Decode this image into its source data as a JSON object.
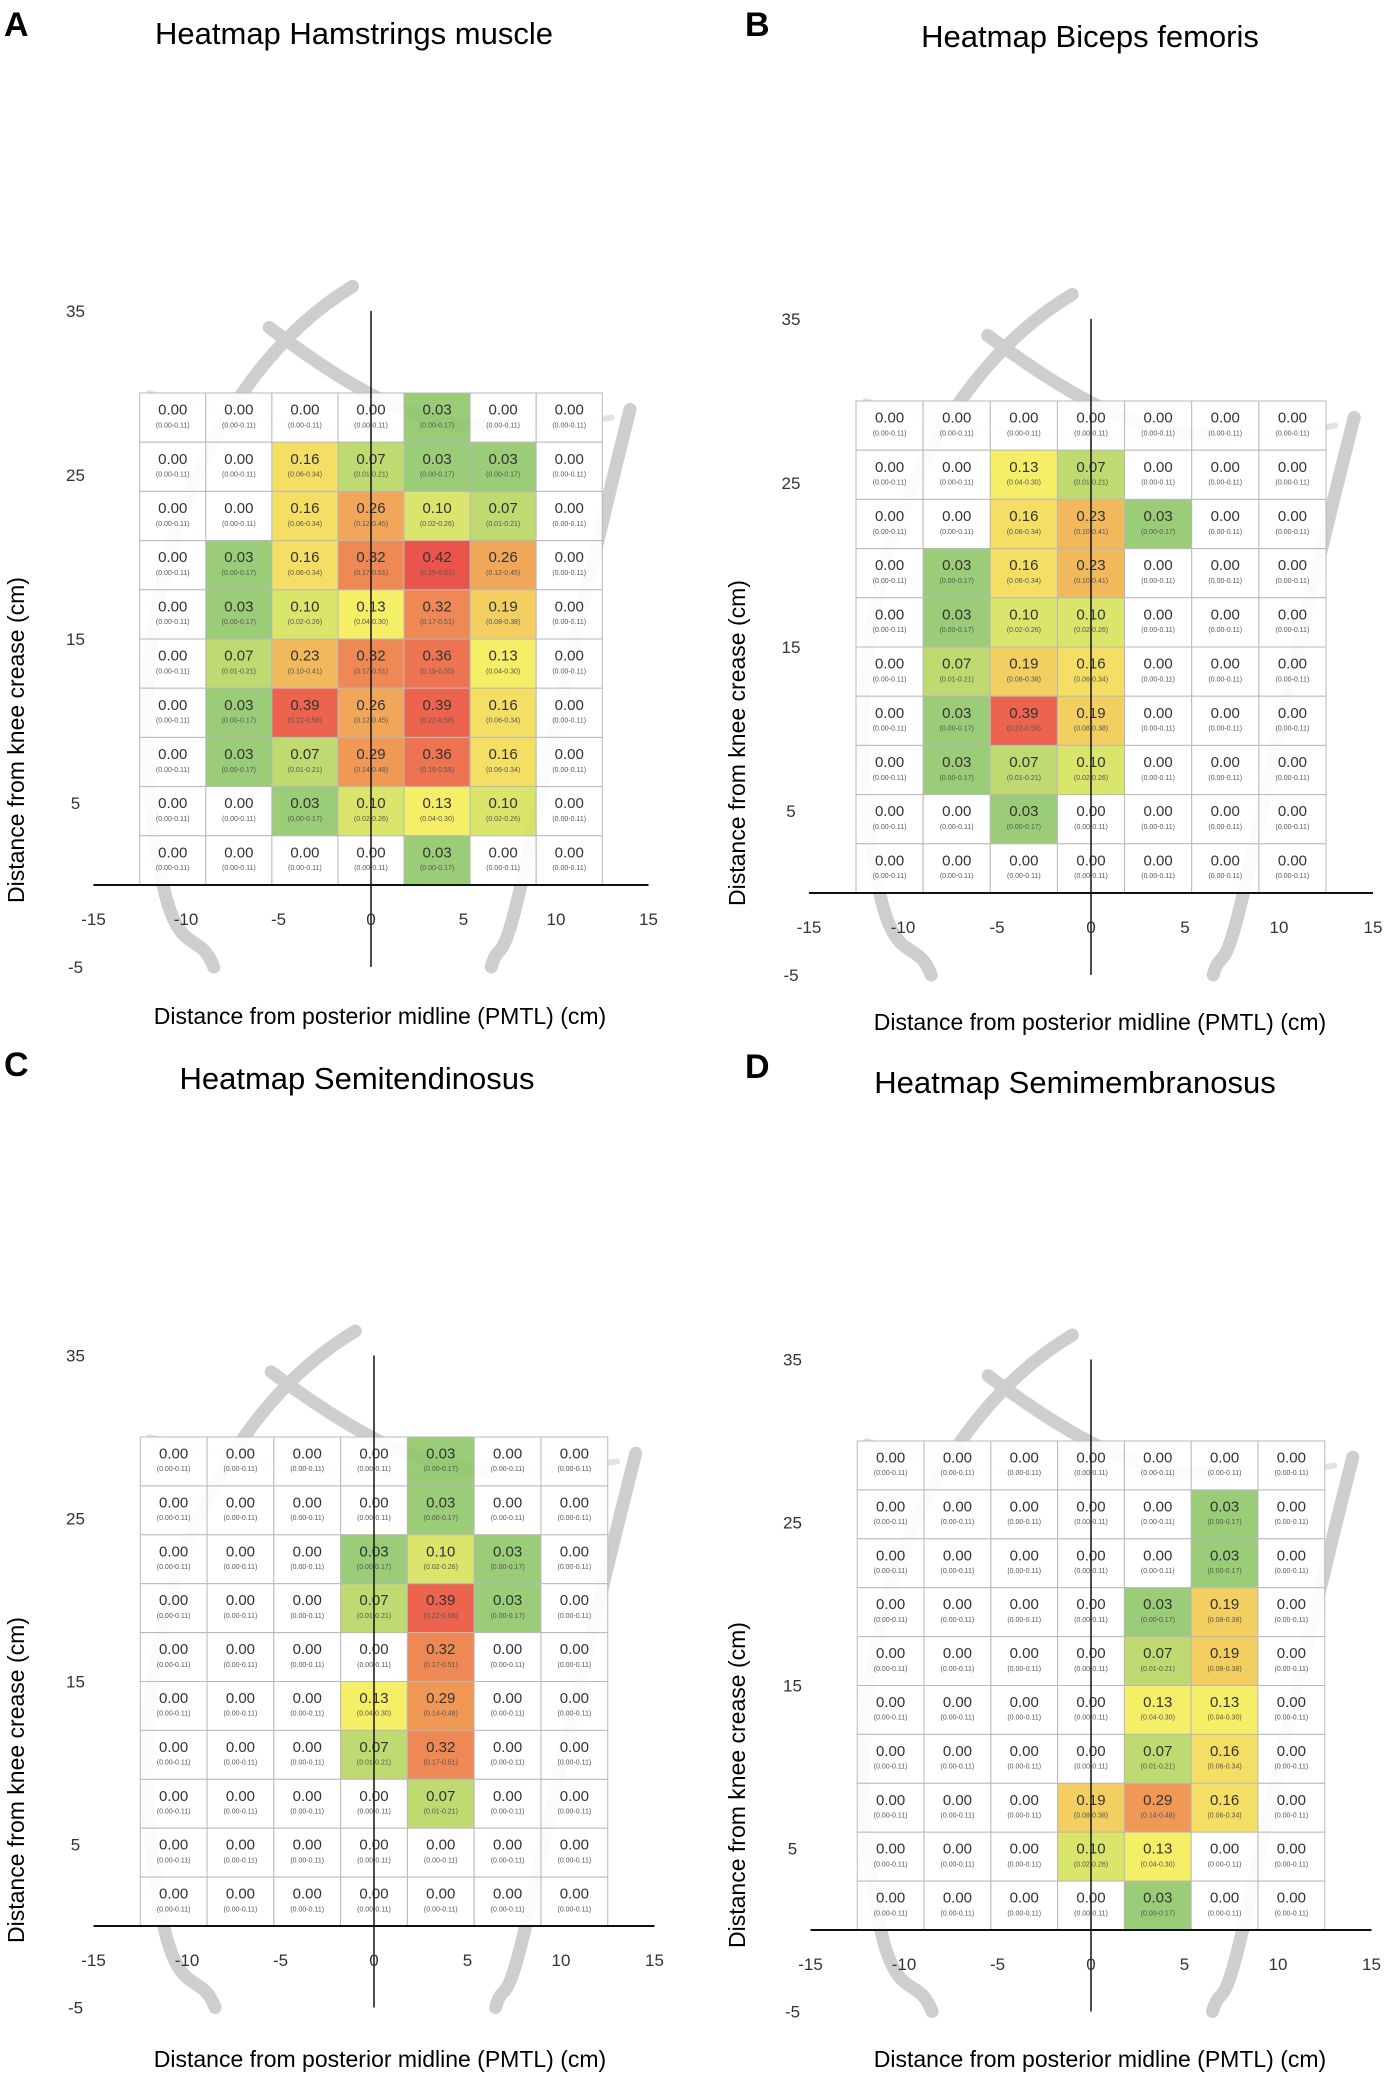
{
  "chart_data": [
    {
      "type": "heatmap",
      "panel_letter": "A",
      "title": "Heatmap Hamstrings muscle",
      "xlabel": "Distance from posterior midline (PMTL) (cm)",
      "ylabel": "Distance from knee crease (cm)",
      "xlim": [
        -15,
        15
      ],
      "ylim": [
        -5,
        35
      ],
      "xticks": [
        -15,
        -10,
        -5,
        0,
        5,
        10,
        15
      ],
      "yticks": [
        -5,
        5,
        15,
        25,
        35
      ],
      "grid_x_range": [
        -12.5,
        12.5
      ],
      "grid_y_range": [
        0,
        30
      ],
      "values": [
        [
          0.0,
          0.0,
          0.0,
          0.0,
          0.03,
          0.0,
          0.0
        ],
        [
          0.0,
          0.0,
          0.16,
          0.07,
          0.03,
          0.03,
          0.0
        ],
        [
          0.0,
          0.0,
          0.16,
          0.26,
          0.1,
          0.07,
          0.0
        ],
        [
          0.0,
          0.03,
          0.16,
          0.32,
          0.42,
          0.26,
          0.0
        ],
        [
          0.0,
          0.03,
          0.1,
          0.13,
          0.32,
          0.19,
          0.0
        ],
        [
          0.0,
          0.07,
          0.23,
          0.32,
          0.36,
          0.13,
          0.0
        ],
        [
          0.0,
          0.03,
          0.39,
          0.26,
          0.39,
          0.16,
          0.0
        ],
        [
          0.0,
          0.03,
          0.07,
          0.29,
          0.36,
          0.16,
          0.0
        ],
        [
          0.0,
          0.0,
          0.03,
          0.1,
          0.13,
          0.1,
          0.0
        ],
        [
          0.0,
          0.0,
          0.0,
          0.0,
          0.03,
          0.0,
          0.0
        ]
      ],
      "ci": [
        [
          "(0.00-0.11)",
          "(0.00-0.11)",
          "(0.00-0.11)",
          "(0.00-0.11)",
          "(0.00-0.17)",
          "(0.00-0.11)",
          "(0.00-0.11)"
        ],
        [
          "(0.00-0.11)",
          "(0.00-0.11)",
          "(0.06-0.34)",
          "(0.01-0.21)",
          "(0.00-0.17)",
          "(0.00-0.17)",
          "(0.00-0.11)"
        ],
        [
          "(0.00-0.11)",
          "(0.00-0.11)",
          "(0.06-0.34)",
          "(0.12-0.45)",
          "(0.02-0.26)",
          "(0.01-0.21)",
          "(0.00-0.11)"
        ],
        [
          "(0.00-0.11)",
          "(0.00-0.17)",
          "(0.06-0.34)",
          "(0.17-0.51)",
          "(0.25-0.61)",
          "(0.12-0.45)",
          "(0.00-0.11)"
        ],
        [
          "(0.00-0.11)",
          "(0.00-0.17)",
          "(0.02-0.26)",
          "(0.04-0.30)",
          "(0.17-0.51)",
          "(0.08-0.38)",
          "(0.00-0.11)"
        ],
        [
          "(0.00-0.11)",
          "(0.01-0.21)",
          "(0.10-0.41)",
          "(0.17-0.51)",
          "(0.19-0.55)",
          "(0.04-0.30)",
          "(0.00-0.11)"
        ],
        [
          "(0.00-0.11)",
          "(0.00-0.17)",
          "(0.22-0.58)",
          "(0.12-0.45)",
          "(0.22-0.58)",
          "(0.06-0.34)",
          "(0.00-0.11)"
        ],
        [
          "(0.00-0.11)",
          "(0.00-0.17)",
          "(0.01-0.21)",
          "(0.14-0.48)",
          "(0.19-0.55)",
          "(0.06-0.34)",
          "(0.00-0.11)"
        ],
        [
          "(0.00-0.11)",
          "(0.00-0.11)",
          "(0.00-0.17)",
          "(0.02-0.26)",
          "(0.04-0.30)",
          "(0.02-0.26)",
          "(0.00-0.11)"
        ],
        [
          "(0.00-0.11)",
          "(0.00-0.11)",
          "(0.00-0.11)",
          "(0.00-0.11)",
          "(0.00-0.17)",
          "(0.00-0.11)",
          "(0.00-0.11)"
        ]
      ]
    },
    {
      "type": "heatmap",
      "panel_letter": "B",
      "title": "Heatmap Biceps femoris",
      "xlabel": "Distance from posterior midline (PMTL) (cm)",
      "ylabel": "Distance from knee crease (cm)",
      "xlim": [
        -15,
        15
      ],
      "ylim": [
        -5,
        35
      ],
      "xticks": [
        -15,
        -10,
        -5,
        0,
        5,
        10,
        15
      ],
      "yticks": [
        -5,
        5,
        15,
        25,
        35
      ],
      "grid_x_range": [
        -12.5,
        12.5
      ],
      "grid_y_range": [
        0,
        30
      ],
      "values": [
        [
          0.0,
          0.0,
          0.0,
          0.0,
          0.0,
          0.0,
          0.0
        ],
        [
          0.0,
          0.0,
          0.13,
          0.07,
          0.0,
          0.0,
          0.0
        ],
        [
          0.0,
          0.0,
          0.16,
          0.23,
          0.03,
          0.0,
          0.0
        ],
        [
          0.0,
          0.03,
          0.16,
          0.23,
          0.0,
          0.0,
          0.0
        ],
        [
          0.0,
          0.03,
          0.1,
          0.1,
          0.0,
          0.0,
          0.0
        ],
        [
          0.0,
          0.07,
          0.19,
          0.16,
          0.0,
          0.0,
          0.0
        ],
        [
          0.0,
          0.03,
          0.39,
          0.19,
          0.0,
          0.0,
          0.0
        ],
        [
          0.0,
          0.03,
          0.07,
          0.1,
          0.0,
          0.0,
          0.0
        ],
        [
          0.0,
          0.0,
          0.03,
          0.0,
          0.0,
          0.0,
          0.0
        ],
        [
          0.0,
          0.0,
          0.0,
          0.0,
          0.0,
          0.0,
          0.0
        ]
      ],
      "ci": [
        [
          "(0.00-0.11)",
          "(0.00-0.11)",
          "(0.00-0.11)",
          "(0.00-0.11)",
          "(0.00-0.11)",
          "(0.00-0.11)",
          "(0.00-0.11)"
        ],
        [
          "(0.00-0.11)",
          "(0.00-0.11)",
          "(0.04-0.30)",
          "(0.01-0.21)",
          "(0.00-0.11)",
          "(0.00-0.11)",
          "(0.00-0.11)"
        ],
        [
          "(0.00-0.11)",
          "(0.00-0.11)",
          "(0.06-0.34)",
          "(0.10-0.41)",
          "(0.00-0.17)",
          "(0.00-0.11)",
          "(0.00-0.11)"
        ],
        [
          "(0.00-0.11)",
          "(0.00-0.17)",
          "(0.06-0.34)",
          "(0.10-0.41)",
          "(0.00-0.11)",
          "(0.00-0.11)",
          "(0.00-0.11)"
        ],
        [
          "(0.00-0.11)",
          "(0.00-0.17)",
          "(0.02-0.26)",
          "(0.02-0.26)",
          "(0.00-0.11)",
          "(0.00-0.11)",
          "(0.00-0.11)"
        ],
        [
          "(0.00-0.11)",
          "(0.01-0.21)",
          "(0.08-0.38)",
          "(0.06-0.34)",
          "(0.00-0.11)",
          "(0.00-0.11)",
          "(0.00-0.11)"
        ],
        [
          "(0.00-0.11)",
          "(0.00-0.17)",
          "(0.22-0.58)",
          "(0.08-0.38)",
          "(0.00-0.11)",
          "(0.00-0.11)",
          "(0.00-0.11)"
        ],
        [
          "(0.00-0.11)",
          "(0.00-0.17)",
          "(0.01-0.21)",
          "(0.02-0.26)",
          "(0.00-0.11)",
          "(0.00-0.11)",
          "(0.00-0.11)"
        ],
        [
          "(0.00-0.11)",
          "(0.00-0.11)",
          "(0.00-0.17)",
          "(0.00-0.11)",
          "(0.00-0.11)",
          "(0.00-0.11)",
          "(0.00-0.11)"
        ],
        [
          "(0.00-0.11)",
          "(0.00-0.11)",
          "(0.00-0.11)",
          "(0.00-0.11)",
          "(0.00-0.11)",
          "(0.00-0.11)",
          "(0.00-0.11)"
        ]
      ]
    },
    {
      "type": "heatmap",
      "panel_letter": "C",
      "title": "Heatmap Semitendinosus",
      "xlabel": "Distance from posterior midline (PMTL) (cm)",
      "ylabel": "Distance from knee crease (cm)",
      "xlim": [
        -15,
        15
      ],
      "ylim": [
        -5,
        35
      ],
      "xticks": [
        -15,
        -10,
        -5,
        0,
        5,
        10,
        15
      ],
      "yticks": [
        -5,
        5,
        15,
        25,
        35
      ],
      "grid_x_range": [
        -12.5,
        12.5
      ],
      "grid_y_range": [
        0,
        30
      ],
      "values": [
        [
          0.0,
          0.0,
          0.0,
          0.0,
          0.03,
          0.0,
          0.0
        ],
        [
          0.0,
          0.0,
          0.0,
          0.0,
          0.03,
          0.0,
          0.0
        ],
        [
          0.0,
          0.0,
          0.0,
          0.03,
          0.1,
          0.03,
          0.0
        ],
        [
          0.0,
          0.0,
          0.0,
          0.07,
          0.39,
          0.03,
          0.0
        ],
        [
          0.0,
          0.0,
          0.0,
          0.0,
          0.32,
          0.0,
          0.0
        ],
        [
          0.0,
          0.0,
          0.0,
          0.13,
          0.29,
          0.0,
          0.0
        ],
        [
          0.0,
          0.0,
          0.0,
          0.07,
          0.32,
          0.0,
          0.0
        ],
        [
          0.0,
          0.0,
          0.0,
          0.0,
          0.07,
          0.0,
          0.0
        ],
        [
          0.0,
          0.0,
          0.0,
          0.0,
          0.0,
          0.0,
          0.0
        ],
        [
          0.0,
          0.0,
          0.0,
          0.0,
          0.0,
          0.0,
          0.0
        ]
      ],
      "ci": [
        [
          "(0.00-0.11)",
          "(0.00-0.11)",
          "(0.00-0.11)",
          "(0.00-0.11)",
          "(0.00-0.17)",
          "(0.00-0.11)",
          "(0.00-0.11)"
        ],
        [
          "(0.00-0.11)",
          "(0.00-0.11)",
          "(0.00-0.11)",
          "(0.00-0.11)",
          "(0.00-0.17)",
          "(0.00-0.11)",
          "(0.00-0.11)"
        ],
        [
          "(0.00-0.11)",
          "(0.00-0.11)",
          "(0.00-0.11)",
          "(0.00-0.17)",
          "(0.02-0.26)",
          "(0.00-0.17)",
          "(0.00-0.11)"
        ],
        [
          "(0.00-0.11)",
          "(0.00-0.11)",
          "(0.00-0.11)",
          "(0.01-0.21)",
          "(0.22-0.58)",
          "(0.00-0.17)",
          "(0.00-0.11)"
        ],
        [
          "(0.00-0.11)",
          "(0.00-0.11)",
          "(0.00-0.11)",
          "(0.00-0.11)",
          "(0.17-0.51)",
          "(0.00-0.11)",
          "(0.00-0.11)"
        ],
        [
          "(0.00-0.11)",
          "(0.00-0.11)",
          "(0.00-0.11)",
          "(0.04-0.30)",
          "(0.14-0.48)",
          "(0.00-0.11)",
          "(0.00-0.11)"
        ],
        [
          "(0.00-0.11)",
          "(0.00-0.11)",
          "(0.00-0.11)",
          "(0.01-0.21)",
          "(0.17-0.51)",
          "(0.00-0.11)",
          "(0.00-0.11)"
        ],
        [
          "(0.00-0.11)",
          "(0.00-0.11)",
          "(0.00-0.11)",
          "(0.00-0.11)",
          "(0.01-0.21)",
          "(0.00-0.11)",
          "(0.00-0.11)"
        ],
        [
          "(0.00-0.11)",
          "(0.00-0.11)",
          "(0.00-0.11)",
          "(0.00-0.11)",
          "(0.00-0.11)",
          "(0.00-0.11)",
          "(0.00-0.11)"
        ],
        [
          "(0.00-0.11)",
          "(0.00-0.11)",
          "(0.00-0.11)",
          "(0.00-0.11)",
          "(0.00-0.11)",
          "(0.00-0.11)",
          "(0.00-0.11)"
        ]
      ]
    },
    {
      "type": "heatmap",
      "panel_letter": "D",
      "title": "Heatmap Semimembranosus",
      "xlabel": "Distance from posterior midline (PMTL) (cm)",
      "ylabel": "Distance from knee crease (cm)",
      "xlim": [
        -15,
        15
      ],
      "ylim": [
        -5,
        35
      ],
      "xticks": [
        -15,
        -10,
        -5,
        0,
        5,
        10,
        15
      ],
      "yticks": [
        -5,
        5,
        15,
        25,
        35
      ],
      "grid_x_range": [
        -12.5,
        12.5
      ],
      "grid_y_range": [
        0,
        30
      ],
      "values": [
        [
          0.0,
          0.0,
          0.0,
          0.0,
          0.0,
          0.0,
          0.0
        ],
        [
          0.0,
          0.0,
          0.0,
          0.0,
          0.0,
          0.03,
          0.0
        ],
        [
          0.0,
          0.0,
          0.0,
          0.0,
          0.0,
          0.03,
          0.0
        ],
        [
          0.0,
          0.0,
          0.0,
          0.0,
          0.03,
          0.19,
          0.0
        ],
        [
          0.0,
          0.0,
          0.0,
          0.0,
          0.07,
          0.19,
          0.0
        ],
        [
          0.0,
          0.0,
          0.0,
          0.0,
          0.13,
          0.13,
          0.0
        ],
        [
          0.0,
          0.0,
          0.0,
          0.0,
          0.07,
          0.16,
          0.0
        ],
        [
          0.0,
          0.0,
          0.0,
          0.19,
          0.29,
          0.16,
          0.0
        ],
        [
          0.0,
          0.0,
          0.0,
          0.1,
          0.13,
          0.0,
          0.0
        ],
        [
          0.0,
          0.0,
          0.0,
          0.0,
          0.03,
          0.0,
          0.0
        ]
      ],
      "ci": [
        [
          "(0.00-0.11)",
          "(0.00-0.11)",
          "(0.00-0.11)",
          "(0.00-0.11)",
          "(0.00-0.11)",
          "(0.00-0.11)",
          "(0.00-0.11)"
        ],
        [
          "(0.00-0.11)",
          "(0.00-0.11)",
          "(0.00-0.11)",
          "(0.00-0.11)",
          "(0.00-0.11)",
          "(0.00-0.17)",
          "(0.00-0.11)"
        ],
        [
          "(0.00-0.11)",
          "(0.00-0.11)",
          "(0.00-0.11)",
          "(0.00-0.11)",
          "(0.00-0.11)",
          "(0.00-0.17)",
          "(0.00-0.11)"
        ],
        [
          "(0.00-0.11)",
          "(0.00-0.11)",
          "(0.00-0.11)",
          "(0.00-0.11)",
          "(0.00-0.17)",
          "(0.08-0.38)",
          "(0.00-0.11)"
        ],
        [
          "(0.00-0.11)",
          "(0.00-0.11)",
          "(0.00-0.11)",
          "(0.00-0.11)",
          "(0.01-0.21)",
          "(0.08-0.38)",
          "(0.00-0.11)"
        ],
        [
          "(0.00-0.11)",
          "(0.00-0.11)",
          "(0.00-0.11)",
          "(0.00-0.11)",
          "(0.04-0.30)",
          "(0.04-0.30)",
          "(0.00-0.11)"
        ],
        [
          "(0.00-0.11)",
          "(0.00-0.11)",
          "(0.00-0.11)",
          "(0.00-0.11)",
          "(0.01-0.21)",
          "(0.06-0.34)",
          "(0.00-0.11)"
        ],
        [
          "(0.00-0.11)",
          "(0.00-0.11)",
          "(0.00-0.11)",
          "(0.08-0.38)",
          "(0.14-0.48)",
          "(0.06-0.34)",
          "(0.00-0.11)"
        ],
        [
          "(0.00-0.11)",
          "(0.00-0.11)",
          "(0.00-0.11)",
          "(0.02-0.26)",
          "(0.04-0.30)",
          "(0.00-0.11)",
          "(0.00-0.11)"
        ],
        [
          "(0.00-0.11)",
          "(0.00-0.11)",
          "(0.00-0.11)",
          "(0.00-0.11)",
          "(0.00-0.17)",
          "(0.00-0.11)",
          "(0.00-0.11)"
        ]
      ]
    }
  ],
  "colors": {
    "zero_cell": "#ffffff",
    "low": "#92c86b",
    "mid": "#f4ee5a",
    "high": "#f0a04b",
    "max": "#e8453c",
    "grid_border": "#b9b9b9",
    "axis": "#111111",
    "leg_outline": "#c6c6c6"
  }
}
